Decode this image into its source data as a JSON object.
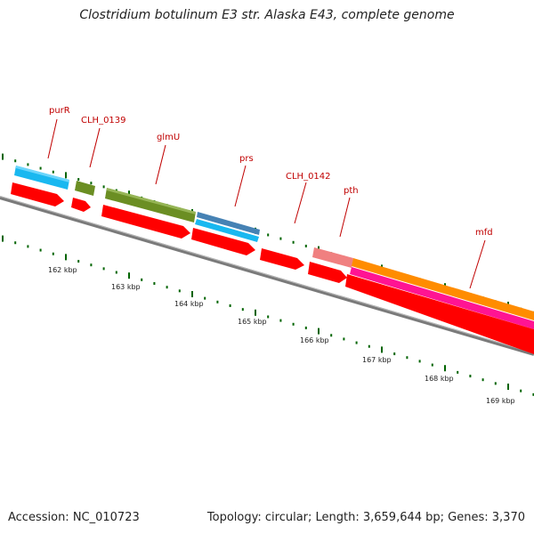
{
  "title": "Clostridium botulinum E3 str. Alaska E43, complete genome",
  "footer": {
    "accession": "Accession: NC_010723",
    "stats": "Topology: circular; Length: 3,659,644 bp; Genes: 3,370"
  },
  "colors": {
    "red": "#ff0000",
    "cyan": "#19b8f0",
    "olive": "#6b8e23",
    "steel": "#4682b4",
    "salmon": "#f08080",
    "orange": "#ff8c00",
    "magenta": "#ff1493",
    "label": "#c00000",
    "tick": "#006400",
    "backbone": "#777777"
  },
  "gene_labels": [
    "purR",
    "CLH_0139",
    "glmU",
    "prs",
    "CLH_0142",
    "pth",
    "mfd"
  ],
  "kbp_labels": [
    "162 kbp",
    "163 kbp",
    "164 kbp",
    "165 kbp",
    "166 kbp",
    "167 kbp",
    "168 kbp",
    "169 kbp"
  ]
}
